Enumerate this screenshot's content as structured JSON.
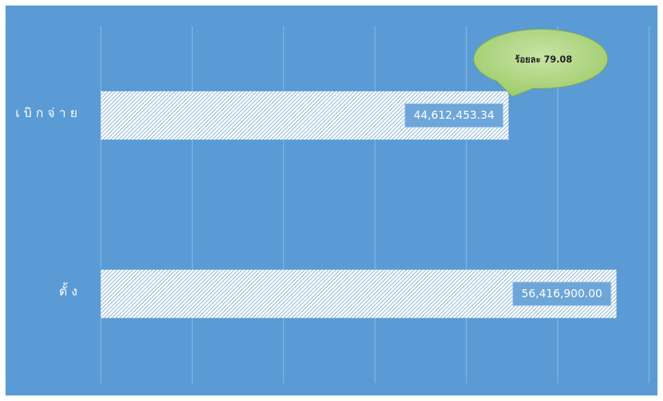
{
  "chart_data": {
    "type": "barh",
    "categories": [
      "เบิกจ่าย",
      "ตั้ง"
    ],
    "values": [
      44612453.34,
      56416900
    ],
    "value_labels": [
      "44,612,453.34",
      "56,416,900.00"
    ],
    "color": "#ffffff",
    "xlim": [
      0,
      60000000
    ],
    "xticks": [
      0,
      10000000,
      20000000,
      30000000,
      40000000,
      50000000,
      60000000
    ],
    "grid": true,
    "annotation": "ร้อยละ 79.08"
  }
}
